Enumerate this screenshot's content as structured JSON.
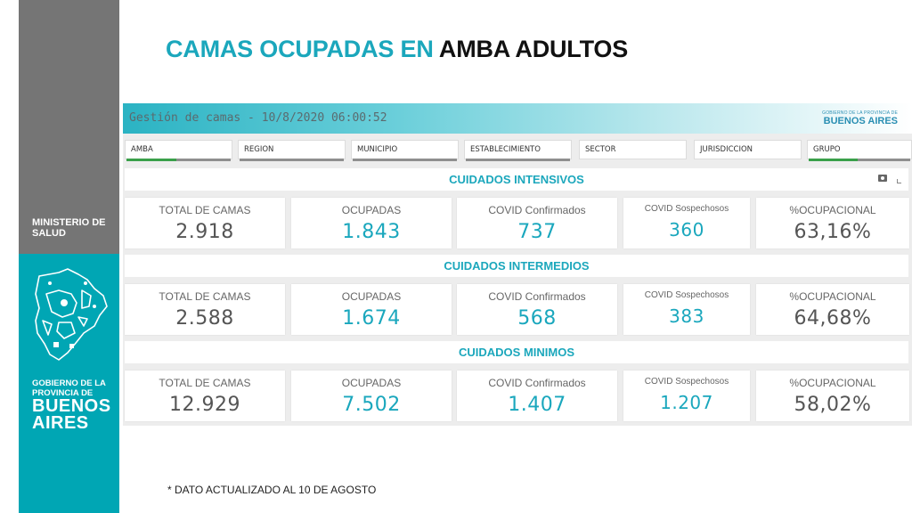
{
  "sidebar": {
    "ministerio_lines": [
      "MINISTERIO DE",
      "SALUD"
    ],
    "gov_small_lines": [
      "GOBIERNO DE LA",
      "PROVINCIA DE"
    ],
    "gov_big_lines": [
      "BUENOS",
      "AIRES"
    ],
    "colors": {
      "top": "#757575",
      "bottom": "#00a6b4"
    }
  },
  "title": {
    "part1": "CAMAS OCUPADAS EN ",
    "part2": "AMBA ADULTOS"
  },
  "dashboard": {
    "header_title": "Gestión de camas - 10/8/2020 06:00:52",
    "header_logo_small": "GOBIERNO DE LA PROVINCIA DE",
    "header_logo_big": "BUENOS AIRES",
    "filters": [
      "AMBA",
      "REGION",
      "MUNICIPIO",
      "ESTABLECIMIENTO",
      "SECTOR",
      "JURISDICCION",
      "GRUPO"
    ],
    "sections": [
      {
        "title": "CUIDADOS INTENSIVOS",
        "metrics": [
          {
            "label": "TOTAL DE CAMAS",
            "value": "2.918"
          },
          {
            "label": "OCUPADAS",
            "value": "1.843"
          },
          {
            "label": "COVID Confirmados",
            "value": "737"
          },
          {
            "label": "COVID Sospechosos",
            "value": "360"
          },
          {
            "label": "%OCUPACIONAL",
            "value": "63,16%"
          }
        ]
      },
      {
        "title": "CUIDADOS INTERMEDIOS",
        "metrics": [
          {
            "label": "TOTAL DE CAMAS",
            "value": "2.588"
          },
          {
            "label": "OCUPADAS",
            "value": "1.674"
          },
          {
            "label": "COVID Confirmados",
            "value": "568"
          },
          {
            "label": "COVID Sospechosos",
            "value": "383"
          },
          {
            "label": "%OCUPACIONAL",
            "value": "64,68%"
          }
        ]
      },
      {
        "title": "CUIDADOS MINIMOS",
        "metrics": [
          {
            "label": "TOTAL DE CAMAS",
            "value": "12.929"
          },
          {
            "label": "OCUPADAS",
            "value": "7.502"
          },
          {
            "label": "COVID Confirmados",
            "value": "1.407"
          },
          {
            "label": "COVID Sospechosos",
            "value": "1.207"
          },
          {
            "label": "%OCUPACIONAL",
            "value": "58,02%"
          }
        ]
      }
    ],
    "colors": {
      "accent": "#1ba7bc",
      "filter_active": "#3aa04a"
    },
    "icons": {
      "section_tools": [
        "camera-icon",
        "expand-icon"
      ]
    }
  },
  "footnote": "* DATO ACTUALIZADO AL 10 DE AGOSTO"
}
